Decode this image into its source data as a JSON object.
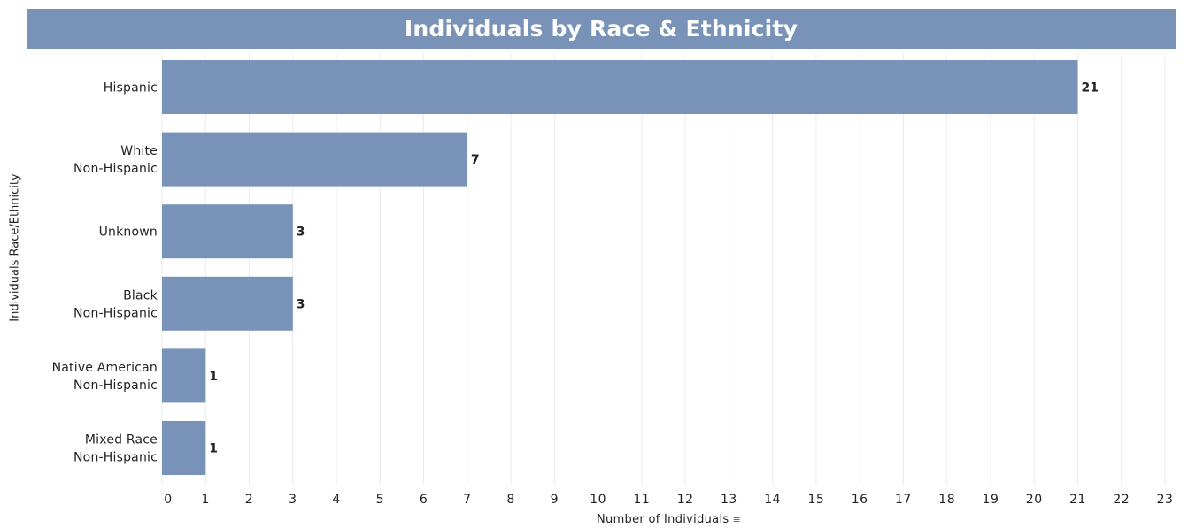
{
  "chart_data": {
    "type": "bar",
    "orientation": "horizontal",
    "title": "Individuals by Race & Ethnicity",
    "xlabel": "Number of Individuals",
    "ylabel": "Individuals Race/Ethnicity",
    "categories": [
      [
        "Hispanic"
      ],
      [
        "White",
        "Non-Hispanic"
      ],
      [
        "Unknown"
      ],
      [
        "Black",
        "Non-Hispanic"
      ],
      [
        "Native American",
        "Non-Hispanic"
      ],
      [
        "Mixed Race",
        "Non-Hispanic"
      ]
    ],
    "values": [
      21,
      7,
      3,
      3,
      1,
      1
    ],
    "xlim": [
      0,
      23
    ],
    "xticks": [
      0,
      1,
      2,
      3,
      4,
      5,
      6,
      7,
      8,
      9,
      10,
      11,
      12,
      13,
      14,
      15,
      16,
      17,
      18,
      19,
      20,
      21,
      22,
      23
    ],
    "grid": "vertical",
    "bar_color": "#7993b8",
    "title_banner_color": "#7993b8",
    "sort_icon": "sort-descending-icon"
  }
}
